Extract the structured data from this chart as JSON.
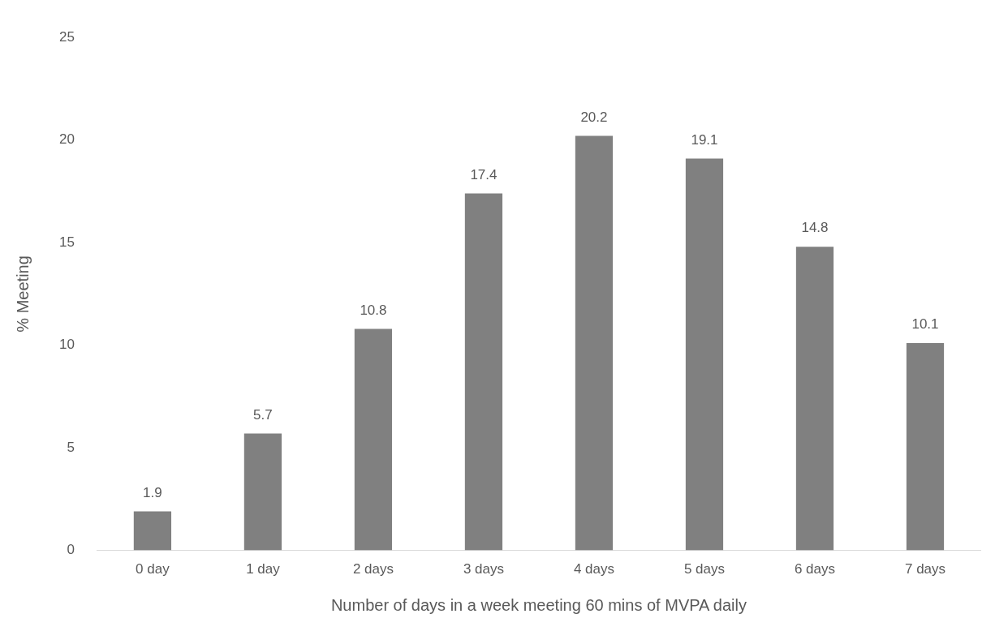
{
  "chart_data": {
    "type": "bar",
    "xlabel": "Number of days in a week meeting 60 mins of MVPA daily",
    "ylabel": "% Meeting",
    "categories": [
      "0 day",
      "1 day",
      "2 days",
      "3 days",
      "4 days",
      "5 days",
      "6 days",
      "7 days"
    ],
    "values": [
      1.9,
      5.7,
      10.8,
      17.4,
      20.2,
      19.1,
      14.8,
      10.1
    ],
    "color": "#808080",
    "ylim": [
      0,
      25
    ],
    "yticks": [
      0,
      5,
      10,
      15,
      20,
      25
    ],
    "grid": false,
    "legend": false,
    "data_labels": true
  }
}
